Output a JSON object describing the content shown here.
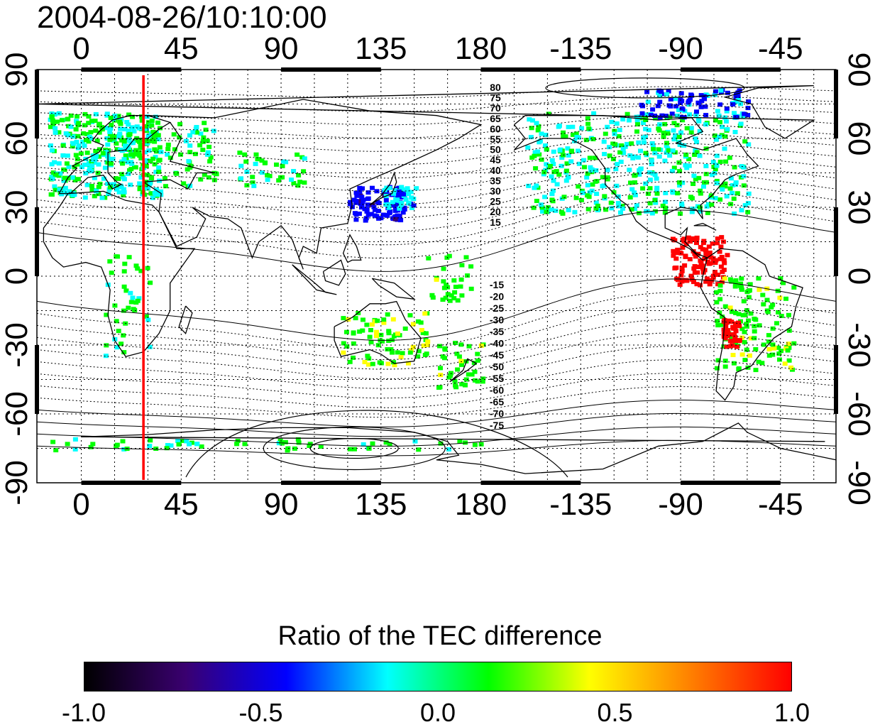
{
  "title": "2004-08-26/10:10:00",
  "axes": {
    "x_ticks_top": [
      "0",
      "45",
      "90",
      "135",
      "180",
      "-135",
      "-90",
      "-45"
    ],
    "x_ticks_bottom": [
      "0",
      "45",
      "90",
      "135",
      "180",
      "-135",
      "-90",
      "-45"
    ],
    "y_ticks_left": [
      "90",
      "60",
      "30",
      "0",
      "-30",
      "-60",
      "-90"
    ],
    "y_ticks_right": [
      "90",
      "60",
      "30",
      "0",
      "-30",
      "-60",
      "-90"
    ],
    "lon_range": [
      -20,
      340
    ],
    "lat_range": [
      -90,
      90
    ],
    "grid": true
  },
  "contour_labels_north": [
    "80",
    "75",
    "70",
    "65",
    "60",
    "55",
    "50",
    "45",
    "40",
    "35",
    "30",
    "25",
    "20",
    "15"
  ],
  "contour_labels_south": [
    "-15",
    "-20",
    "-25",
    "-30",
    "-35",
    "-40",
    "-45",
    "-50",
    "-55",
    "-60",
    "-65",
    "-70",
    "-75"
  ],
  "terminator_longitude": 28,
  "colorbar": {
    "title": "Ratio of the TEC difference",
    "min": -1.0,
    "max": 1.0,
    "tick_labels": [
      "-1.0",
      "-0.5",
      "0.0",
      "0.5",
      "1.0"
    ],
    "colors": [
      "#000000",
      "#3a0070",
      "#0000ff",
      "#00ffff",
      "#00ff00",
      "#ffff00",
      "#ff8000",
      "#ff0000"
    ]
  },
  "colors": {
    "terminator": "#ff0000",
    "coastline": "#000000",
    "grid": "#000000"
  }
}
